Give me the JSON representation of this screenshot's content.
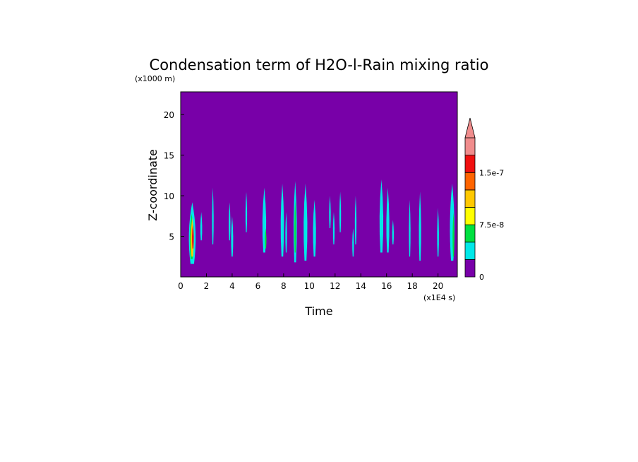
{
  "chart_data": {
    "type": "heatmap",
    "title": "Condensation term of H2O-l-Rain mixing ratio",
    "xlabel": "Time",
    "ylabel": "Z-coordinate",
    "x_unit": "(x1E4 s)",
    "y_unit": "(x1000 m)",
    "xlim": [
      0,
      21.5
    ],
    "ylim": [
      0,
      22.8
    ],
    "x_ticks": [
      "0",
      "2",
      "4",
      "6",
      "8",
      "10",
      "12",
      "14",
      "16",
      "18",
      "20"
    ],
    "y_ticks": [
      "5",
      "10",
      "15",
      "20"
    ],
    "background_level": 0,
    "colorbar": {
      "colors": [
        "#7800a8",
        "#00e8e8",
        "#00e040",
        "#ffff00",
        "#ffc800",
        "#ff6400",
        "#f01010",
        "#f08c8c"
      ],
      "levels": [
        0,
        2.5e-08,
        5e-08,
        7.5e-08,
        1e-07,
        1.25e-07,
        1.5e-07,
        1.75e-07
      ],
      "labels": [
        "0",
        "7.5e-8",
        "1.5e-7"
      ],
      "label_levels": [
        0,
        7.5e-08,
        1.5e-07
      ],
      "extend": "max"
    },
    "features": [
      {
        "x": 0.9,
        "z_bottom": 1.6,
        "z_top": 9.2,
        "width": 0.45,
        "level": 1
      },
      {
        "x": 0.85,
        "z_bottom": 2.2,
        "z_top": 7.8,
        "width": 0.25,
        "level": 2
      },
      {
        "x": 0.9,
        "z_bottom": 2.5,
        "z_top": 7.3,
        "width": 0.2,
        "level": 4
      },
      {
        "x": 0.95,
        "z_bottom": 3.5,
        "z_top": 6.5,
        "width": 0.12,
        "level": 6
      },
      {
        "x": 1.6,
        "z_bottom": 4.5,
        "z_top": 8.0,
        "width": 0.12,
        "level": 1
      },
      {
        "x": 2.5,
        "z_bottom": 4.0,
        "z_top": 11.0,
        "width": 0.1,
        "level": 1
      },
      {
        "x": 3.8,
        "z_bottom": 4.5,
        "z_top": 9.2,
        "width": 0.1,
        "level": 1
      },
      {
        "x": 4.0,
        "z_bottom": 2.5,
        "z_top": 7.5,
        "width": 0.14,
        "level": 1
      },
      {
        "x": 5.1,
        "z_bottom": 5.5,
        "z_top": 10.5,
        "width": 0.07,
        "level": 1
      },
      {
        "x": 6.5,
        "z_bottom": 3.0,
        "z_top": 11.0,
        "width": 0.25,
        "level": 1
      },
      {
        "x": 6.6,
        "z_bottom": 3.5,
        "z_top": 6.0,
        "width": 0.1,
        "level": 2
      },
      {
        "x": 7.9,
        "z_bottom": 2.5,
        "z_top": 11.5,
        "width": 0.22,
        "level": 1
      },
      {
        "x": 8.2,
        "z_bottom": 3.0,
        "z_top": 8.0,
        "width": 0.1,
        "level": 1
      },
      {
        "x": 8.9,
        "z_bottom": 1.8,
        "z_top": 11.8,
        "width": 0.22,
        "level": 1
      },
      {
        "x": 8.9,
        "z_bottom": 3.0,
        "z_top": 9.5,
        "width": 0.1,
        "level": 2
      },
      {
        "x": 9.7,
        "z_bottom": 2.0,
        "z_top": 11.5,
        "width": 0.25,
        "level": 1
      },
      {
        "x": 10.4,
        "z_bottom": 2.5,
        "z_top": 9.5,
        "width": 0.2,
        "level": 1
      },
      {
        "x": 11.6,
        "z_bottom": 6.0,
        "z_top": 10.0,
        "width": 0.08,
        "level": 1
      },
      {
        "x": 11.9,
        "z_bottom": 4.0,
        "z_top": 8.0,
        "width": 0.08,
        "level": 1
      },
      {
        "x": 12.4,
        "z_bottom": 5.5,
        "z_top": 10.5,
        "width": 0.1,
        "level": 1
      },
      {
        "x": 13.4,
        "z_bottom": 2.5,
        "z_top": 6.0,
        "width": 0.07,
        "level": 1
      },
      {
        "x": 13.6,
        "z_bottom": 4.0,
        "z_top": 10.0,
        "width": 0.1,
        "level": 1
      },
      {
        "x": 15.6,
        "z_bottom": 3.0,
        "z_top": 12.0,
        "width": 0.25,
        "level": 1
      },
      {
        "x": 16.1,
        "z_bottom": 3.0,
        "z_top": 11.0,
        "width": 0.2,
        "level": 1
      },
      {
        "x": 16.5,
        "z_bottom": 4.0,
        "z_top": 7.0,
        "width": 0.08,
        "level": 1
      },
      {
        "x": 17.8,
        "z_bottom": 2.5,
        "z_top": 9.5,
        "width": 0.1,
        "level": 1
      },
      {
        "x": 18.6,
        "z_bottom": 2.0,
        "z_top": 10.5,
        "width": 0.15,
        "level": 1
      },
      {
        "x": 20.0,
        "z_bottom": 2.5,
        "z_top": 8.5,
        "width": 0.12,
        "level": 1
      },
      {
        "x": 21.1,
        "z_bottom": 2.0,
        "z_top": 11.5,
        "width": 0.3,
        "level": 1
      },
      {
        "x": 21.2,
        "z_bottom": 2.5,
        "z_top": 8.0,
        "width": 0.12,
        "level": 2
      }
    ]
  }
}
